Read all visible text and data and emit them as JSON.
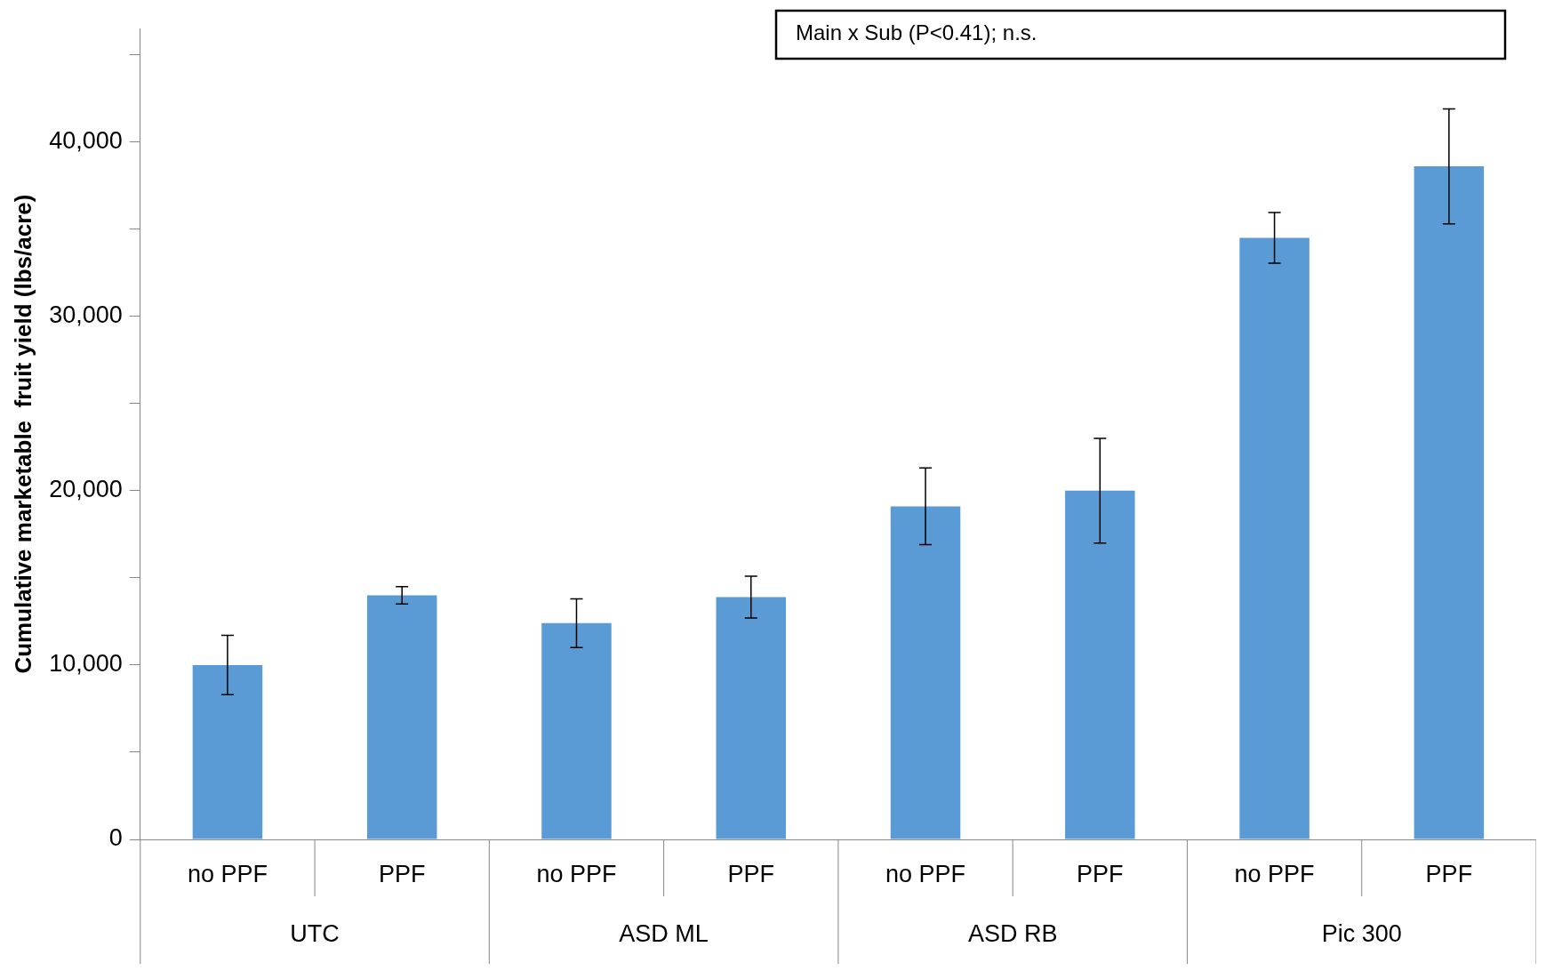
{
  "chart_data": {
    "type": "bar",
    "ylabel": "Cumulative marketable  fruit yield (lbs/acre)",
    "categories": [
      "no PPF",
      "PPF",
      "no PPF",
      "PPF",
      "no PPF",
      "PPF",
      "no PPF",
      "PPF"
    ],
    "values": [
      10000,
      14000,
      12400,
      13900,
      19100,
      20000,
      34500,
      38600
    ],
    "errors": [
      1700,
      500,
      1400,
      1200,
      2200,
      3000,
      1450,
      3300
    ],
    "color": "#5b9bd5",
    "ylim": [
      0,
      46500
    ],
    "yticks": [
      0,
      {
        "value": 5000,
        "label": null
      },
      {
        "value": 10000,
        "label": "10,000"
      },
      {
        "value": 15000,
        "label": null
      },
      {
        "value": 20000,
        "label": "20,000"
      },
      {
        "value": 25000,
        "label": null
      },
      {
        "value": 30000,
        "label": "30,000"
      },
      {
        "value": 35000,
        "label": null
      },
      {
        "value": 40000,
        "label": "40,000"
      },
      {
        "value": 45000,
        "label": null
      }
    ],
    "grid": false,
    "legend": false,
    "annotations": [
      "Main x Sub (P<0.41); n.s.",
      "UTC",
      "ASD ML",
      "ASD RB",
      "Pic 300"
    ]
  }
}
